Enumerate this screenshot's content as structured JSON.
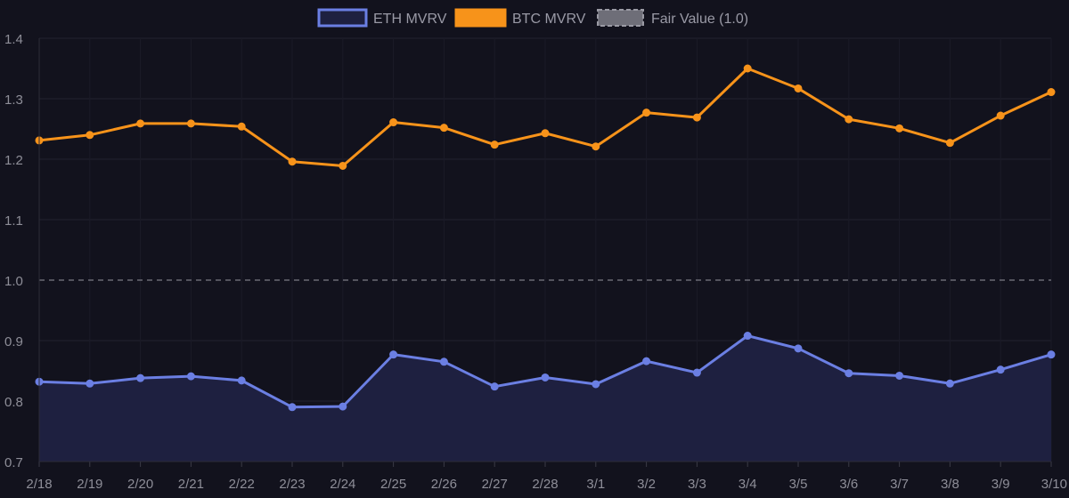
{
  "chart_data": {
    "type": "line",
    "title": "",
    "xlabel": "",
    "ylabel": "",
    "categories": [
      "2/18",
      "2/19",
      "2/20",
      "2/21",
      "2/22",
      "2/23",
      "2/24",
      "2/25",
      "2/26",
      "2/27",
      "2/28",
      "3/1",
      "3/2",
      "3/3",
      "3/4",
      "3/5",
      "3/6",
      "3/7",
      "3/8",
      "3/9",
      "3/10"
    ],
    "ylim": [
      0.7,
      1.4
    ],
    "yticks": [
      "0.7",
      "0.8",
      "0.9",
      "1.0",
      "1.1",
      "1.2",
      "1.3",
      "1.4"
    ],
    "grid": true,
    "legend_position": "top-center",
    "series": [
      {
        "name": "ETH MVRV",
        "color": "#6b7fe3",
        "fill": "#1e2040",
        "filled_area": true,
        "values": [
          0.832,
          0.829,
          0.838,
          0.841,
          0.834,
          0.79,
          0.791,
          0.877,
          0.865,
          0.824,
          0.839,
          0.828,
          0.866,
          0.847,
          0.908,
          0.887,
          0.846,
          0.842,
          0.829,
          0.852,
          0.877
        ]
      },
      {
        "name": "BTC MVRV",
        "color": "#f7931a",
        "filled_area": false,
        "values": [
          1.231,
          1.24,
          1.259,
          1.259,
          1.254,
          1.196,
          1.189,
          1.261,
          1.252,
          1.224,
          1.243,
          1.221,
          1.277,
          1.269,
          1.35,
          1.317,
          1.266,
          1.251,
          1.227,
          1.272,
          1.311
        ]
      }
    ],
    "reference_line": {
      "name": "Fair Value (1.0)",
      "value": 1.0,
      "color": "#7c7c86",
      "style": "dashed"
    }
  }
}
